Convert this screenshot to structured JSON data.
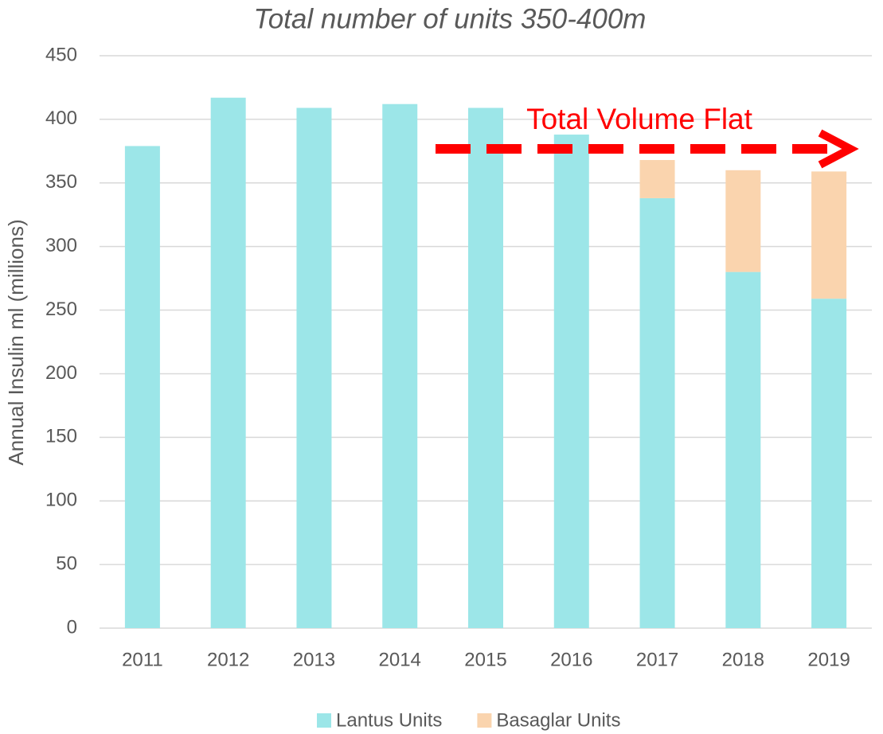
{
  "chart_data": {
    "type": "stacked_bar",
    "title": "Total number of units 350-400m",
    "y_label": "Annual Insulin ml  (millions)",
    "categories": [
      "2011",
      "2012",
      "2013",
      "2014",
      "2015",
      "2016",
      "2017",
      "2018",
      "2019"
    ],
    "series": [
      {
        "name": "Lantus Units",
        "color": "#9ce6e8",
        "values": [
          379,
          417,
          409,
          412,
          409,
          388,
          338,
          280,
          259
        ]
      },
      {
        "name": "Basaglar Units",
        "color": "#fad4ae",
        "values": [
          null,
          null,
          null,
          null,
          null,
          null,
          30,
          80,
          100
        ]
      }
    ],
    "ylim": [
      0,
      450
    ],
    "yticks": [
      0,
      50,
      100,
      150,
      200,
      250,
      300,
      350,
      400,
      450
    ],
    "grid": true,
    "annotation": "Total Volume Flat",
    "annotation_color": "#ff0000"
  }
}
